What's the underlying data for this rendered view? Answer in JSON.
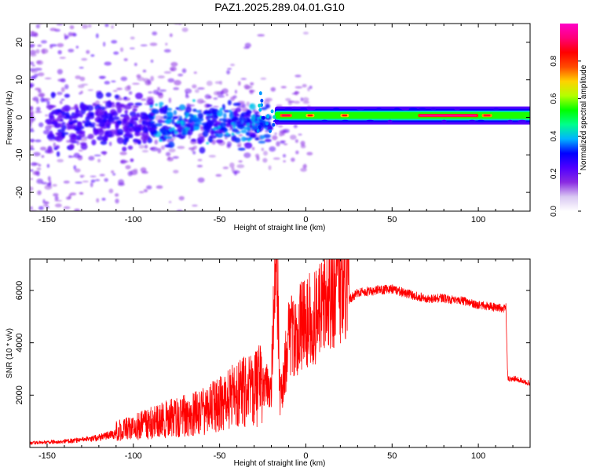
{
  "figure_title": "PAZ1.2025.289.04.01.G10",
  "chart_data": [
    {
      "type": "heatmap",
      "title": "PAZ1.2025.289.04.01.G10",
      "xlabel": "Height of straight line (km)",
      "ylabel": "Frequency (Hz)",
      "xlim": [
        -160,
        130
      ],
      "ylim": [
        -25,
        25
      ],
      "xticks": [
        -150,
        -100,
        -50,
        0,
        50,
        100
      ],
      "xtick_labels": [
        "-150",
        "-100",
        "-50",
        "0",
        "50",
        "100"
      ],
      "yticks": [
        20,
        10,
        0,
        -10,
        -20
      ],
      "ytick_labels": [
        "20",
        "10",
        "0",
        "-10",
        "-20"
      ],
      "colormap": "gist_rainbow",
      "colorbar": {
        "label": "Normalized spectral amplitude",
        "range": [
          0.0,
          1.0
        ],
        "ticks": [
          0.0,
          0.2,
          0.4,
          0.6,
          0.8
        ],
        "tick_labels": [
          "0.0",
          "0.2",
          "0.4",
          "0.6",
          "0.8"
        ],
        "colors": [
          "#ffffff",
          "#d9c7f2",
          "#8a2be2",
          "#5000ff",
          "#0000ff",
          "#00b4ff",
          "#00ff8c",
          "#00ff00",
          "#b4ff00",
          "#ffd200",
          "#ff4b00",
          "#ff0000",
          "#ff0078",
          "#ff00c8"
        ]
      },
      "description_of_signal": {
        "noise_region_x": [
          -160,
          -25
        ],
        "carrier_region_x": [
          -20,
          130
        ],
        "carrier_frequency_hz": 0.5,
        "carrier_amplitude": 0.55,
        "peak_amplitude": 0.95,
        "peak_x_range": [
          65,
          100
        ]
      }
    },
    {
      "type": "line",
      "xlabel": "Height of straight line (km)",
      "ylabel": "SNR (10 * v/v)",
      "xlim": [
        -160,
        130
      ],
      "ylim": [
        0,
        7200
      ],
      "xticks": [
        -150,
        -100,
        -50,
        0,
        50,
        100
      ],
      "xtick_labels": [
        "-150",
        "-100",
        "-50",
        "0",
        "50",
        "100"
      ],
      "yticks": [
        2000,
        4000,
        6000
      ],
      "ytick_labels": [
        "2000",
        "4000",
        "6000"
      ],
      "line_color": "#ff0000",
      "series": [
        {
          "name": "SNR",
          "x": [
            -160,
            -150,
            -140,
            -130,
            -120,
            -110,
            -100,
            -90,
            -80,
            -70,
            -60,
            -50,
            -40,
            -30,
            -25,
            -20,
            -17,
            -15,
            -12,
            -10,
            -5,
            0,
            5,
            10,
            20,
            30,
            40,
            50,
            60,
            70,
            80,
            90,
            100,
            110,
            116,
            117,
            118,
            120,
            125,
            130
          ],
          "y": [
            150,
            180,
            200,
            250,
            320,
            450,
            550,
            700,
            800,
            900,
            1000,
            1200,
            1500,
            1600,
            1900,
            2000,
            7100,
            1500,
            2600,
            3500,
            3700,
            4200,
            4100,
            4900,
            5400,
            5900,
            6000,
            6050,
            5850,
            5700,
            5700,
            5600,
            5450,
            5350,
            5300,
            2700,
            2600,
            2650,
            2550,
            2450
          ]
        }
      ]
    }
  ]
}
